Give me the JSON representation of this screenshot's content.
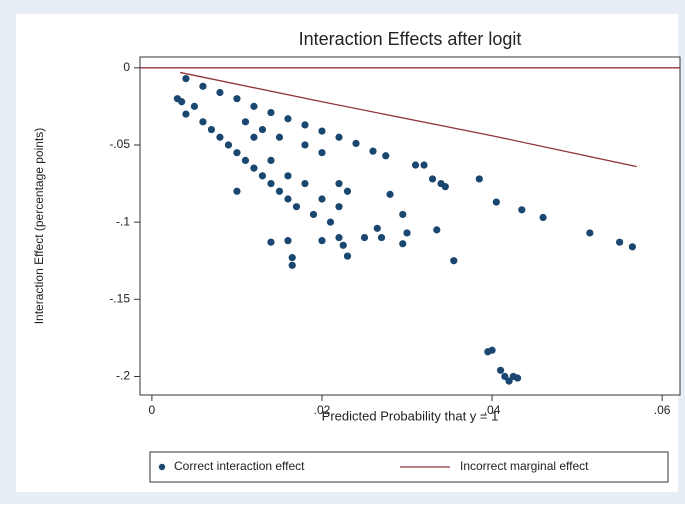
{
  "chart_data": {
    "type": "scatter",
    "title": "Interaction Effects after logit",
    "x_label": "Predicted Probability that y = 1",
    "y_label": "Interaction Effect (percentage points)",
    "xlim": [
      -0.0014,
      0.0621
    ],
    "ylim": [
      -0.212,
      0.007
    ],
    "xticks": [
      0,
      {
        "value": 0.02,
        "label": ".02"
      },
      {
        "value": 0.04,
        "label": ".04"
      },
      {
        "value": 0.06,
        "label": ".06"
      }
    ],
    "yticks": [
      0,
      {
        "value": -0.05,
        "label": "-.05"
      },
      {
        "value": -0.1,
        "label": "-.1"
      },
      {
        "value": -0.15,
        "label": "-.15"
      },
      {
        "value": -0.2,
        "label": "-.2"
      }
    ],
    "yline": 0,
    "yline_color": "#90353b",
    "legend": "bottom",
    "series": [
      {
        "name": "Correct interaction effect",
        "type": "scatter",
        "color": "#1a476f",
        "x": [
          0.004,
          0.006,
          0.008,
          0.01,
          0.012,
          0.014,
          0.016,
          0.018,
          0.02,
          0.022,
          0.024,
          0.026,
          0.0275,
          0.003,
          0.0035,
          0.004,
          0.005,
          0.006,
          0.007,
          0.008,
          0.009,
          0.01,
          0.01,
          0.011,
          0.012,
          0.012,
          0.013,
          0.014,
          0.014,
          0.015,
          0.016,
          0.016,
          0.017,
          0.018,
          0.019,
          0.02,
          0.021,
          0.022,
          0.022,
          0.023,
          0.015,
          0.018,
          0.02,
          0.011,
          0.013,
          0.014,
          0.016,
          0.0165,
          0.0165,
          0.02,
          0.022,
          0.0225,
          0.023,
          0.025,
          0.0265,
          0.027,
          0.0295,
          0.03,
          0.0295,
          0.028,
          0.031,
          0.032,
          0.033,
          0.034,
          0.0345,
          0.0335,
          0.0355,
          0.0385,
          0.0405,
          0.0435,
          0.046,
          0.0515,
          0.055,
          0.0565,
          0.0395,
          0.04,
          0.041,
          0.0415,
          0.042,
          0.0425,
          0.043
        ],
        "values": [
          -0.007,
          -0.012,
          -0.016,
          -0.02,
          -0.025,
          -0.029,
          -0.033,
          -0.037,
          -0.041,
          -0.045,
          -0.049,
          -0.054,
          -0.057,
          -0.02,
          -0.022,
          -0.03,
          -0.025,
          -0.035,
          -0.04,
          -0.045,
          -0.05,
          -0.055,
          -0.08,
          -0.06,
          -0.065,
          -0.045,
          -0.07,
          -0.06,
          -0.075,
          -0.08,
          -0.07,
          -0.085,
          -0.09,
          -0.075,
          -0.095,
          -0.085,
          -0.1,
          -0.075,
          -0.09,
          -0.08,
          -0.045,
          -0.05,
          -0.055,
          -0.035,
          -0.04,
          -0.113,
          -0.112,
          -0.123,
          -0.128,
          -0.112,
          -0.11,
          -0.115,
          -0.122,
          -0.11,
          -0.104,
          -0.11,
          -0.114,
          -0.107,
          -0.095,
          -0.082,
          -0.063,
          -0.063,
          -0.072,
          -0.075,
          -0.077,
          -0.105,
          -0.125,
          -0.072,
          -0.087,
          -0.092,
          -0.097,
          -0.107,
          -0.113,
          -0.116,
          -0.184,
          -0.183,
          -0.196,
          -0.2,
          -0.203,
          -0.2,
          -0.201
        ]
      },
      {
        "name": "Incorrect marginal effect",
        "type": "line",
        "color": "#90353b",
        "x": [
          0.0033,
          0.02,
          0.04,
          0.057
        ],
        "values": [
          -0.003,
          -0.022,
          -0.044,
          -0.064
        ]
      }
    ]
  }
}
